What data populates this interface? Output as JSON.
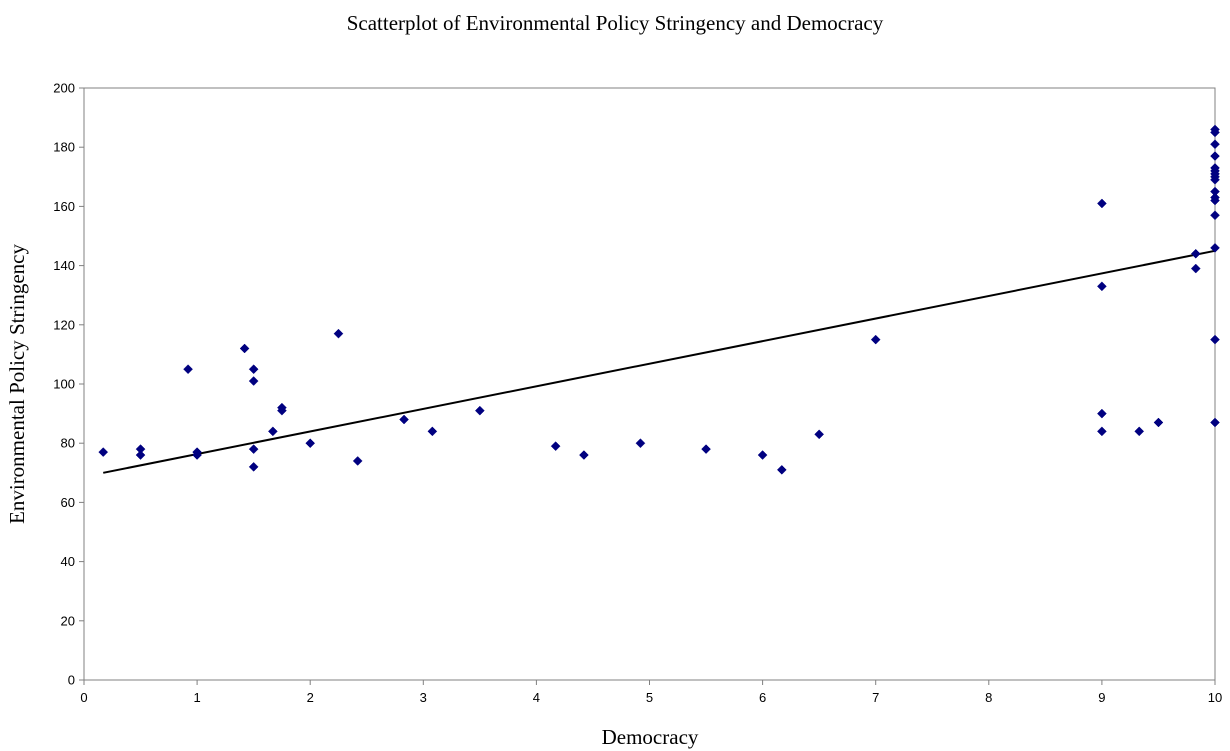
{
  "chart_data": {
    "type": "scatter",
    "title": "Scatterplot of Environmental Policy Stringency and Democracy",
    "xlabel": "Democracy",
    "ylabel": "Environmental Policy Stringency",
    "xlim": [
      0,
      10
    ],
    "ylim": [
      0,
      200
    ],
    "xticks": [
      "0",
      "1",
      "2",
      "3",
      "4",
      "5",
      "6",
      "7",
      "8",
      "9",
      "10"
    ],
    "yticks": [
      "0",
      "20",
      "40",
      "60",
      "80",
      "100",
      "120",
      "140",
      "160",
      "180",
      "200"
    ],
    "grid": false,
    "legend": "none",
    "marker_color": "#000080",
    "series": [
      {
        "points": [
          [
            0.17,
            77
          ],
          [
            0.5,
            78
          ],
          [
            0.5,
            76
          ],
          [
            0.92,
            105
          ],
          [
            1.0,
            77
          ],
          [
            1.0,
            76
          ],
          [
            1.42,
            112
          ],
          [
            1.5,
            105
          ],
          [
            1.5,
            101
          ],
          [
            1.5,
            78
          ],
          [
            1.5,
            72
          ],
          [
            1.67,
            84
          ],
          [
            1.75,
            92
          ],
          [
            1.75,
            91
          ],
          [
            2.0,
            80
          ],
          [
            2.25,
            117
          ],
          [
            2.42,
            74
          ],
          [
            2.83,
            88
          ],
          [
            3.08,
            84
          ],
          [
            3.5,
            91
          ],
          [
            4.17,
            79
          ],
          [
            4.42,
            76
          ],
          [
            4.92,
            80
          ],
          [
            5.5,
            78
          ],
          [
            6.0,
            76
          ],
          [
            6.17,
            71
          ],
          [
            6.5,
            83
          ],
          [
            7.0,
            115
          ],
          [
            9.0,
            161
          ],
          [
            9.0,
            133
          ],
          [
            9.0,
            90
          ],
          [
            9.0,
            84
          ],
          [
            9.33,
            84
          ],
          [
            9.5,
            87
          ],
          [
            9.83,
            144
          ],
          [
            9.83,
            139
          ],
          [
            10.0,
            186
          ],
          [
            10.0,
            185
          ],
          [
            10.0,
            181
          ],
          [
            10.0,
            177
          ],
          [
            10.0,
            173
          ],
          [
            10.0,
            172
          ],
          [
            10.0,
            171
          ],
          [
            10.0,
            170
          ],
          [
            10.0,
            169
          ],
          [
            10.0,
            165
          ],
          [
            10.0,
            163
          ],
          [
            10.0,
            162
          ],
          [
            10.0,
            157
          ],
          [
            10.0,
            146
          ],
          [
            10.0,
            115
          ],
          [
            10.0,
            87
          ]
        ]
      }
    ],
    "trendline": {
      "type": "linear",
      "x": [
        0.17,
        10.0
      ],
      "y": [
        70,
        145
      ]
    }
  }
}
